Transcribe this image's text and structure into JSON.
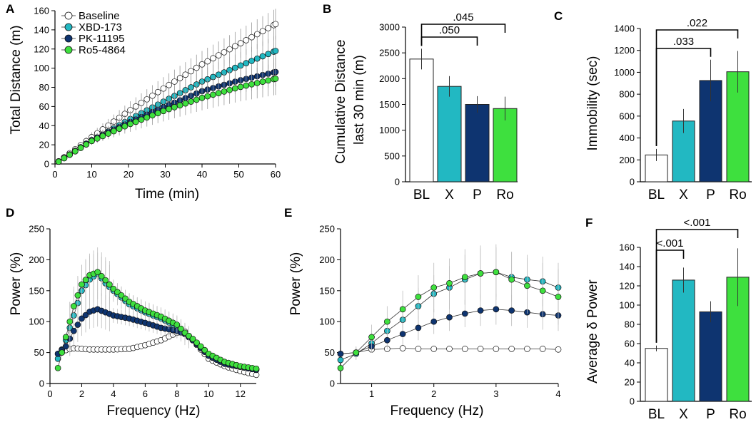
{
  "colors": {
    "Baseline": "#ffffff",
    "XBD-173": "#22b8c2",
    "PK-11195": "#0e3470",
    "Ro5-4864": "#3ee03e",
    "err": "#999999",
    "axis": "#000000"
  },
  "chart_data": [
    {
      "panel": "A",
      "type": "line",
      "xlabel": "Time (min)",
      "ylabel": "Total Distance (m)",
      "xlim": [
        0,
        60
      ],
      "ylim": [
        0,
        160
      ],
      "xticks": [
        "0",
        "10",
        "20",
        "30",
        "40",
        "50",
        "60"
      ],
      "yticks": [
        "0",
        "20",
        "40",
        "60",
        "80",
        "100",
        "120",
        "140",
        "160"
      ],
      "legend": [
        "Baseline",
        "XBD-173",
        "PK-11195",
        "Ro5-4864"
      ],
      "x": [
        0,
        10,
        20,
        30,
        40,
        50,
        60
      ],
      "series": [
        {
          "name": "Baseline",
          "values": [
            0,
            28,
            55,
            80,
            104,
            125,
            146
          ],
          "err": [
            0,
            5,
            9,
            12,
            14,
            15,
            16
          ]
        },
        {
          "name": "XBD-173",
          "values": [
            0,
            24,
            46,
            66,
            86,
            102,
            118
          ],
          "err": [
            0,
            4,
            8,
            10,
            12,
            14,
            16
          ]
        },
        {
          "name": "PK-11195",
          "values": [
            0,
            25,
            43,
            60,
            76,
            87,
            96
          ],
          "err": [
            0,
            4,
            7,
            9,
            11,
            13,
            15
          ]
        },
        {
          "name": "Ro5-4864",
          "values": [
            0,
            24,
            41,
            56,
            69,
            80,
            89
          ],
          "err": [
            0,
            4,
            8,
            11,
            13,
            15,
            17
          ]
        }
      ]
    },
    {
      "panel": "B",
      "type": "bar",
      "ylabel": "Cumulative Distance last 30 min (m)",
      "ylim": [
        0,
        3000
      ],
      "yticks": [
        "0",
        "500",
        "1000",
        "1500",
        "2000",
        "2500",
        "3000"
      ],
      "categories": [
        "BL",
        "X",
        "P",
        "Ro"
      ],
      "values": [
        2380,
        1850,
        1500,
        1420
      ],
      "err": [
        200,
        200,
        160,
        230
      ],
      "comparisons": [
        {
          "from": 0,
          "to": 2,
          "label": ".050"
        },
        {
          "from": 0,
          "to": 3,
          "label": ".045"
        }
      ]
    },
    {
      "panel": "C",
      "type": "bar",
      "ylabel": "Immobility (sec)",
      "ylim": [
        0,
        1400
      ],
      "yticks": [
        "0",
        "200",
        "400",
        "600",
        "800",
        "1000",
        "1200",
        "1400"
      ],
      "categories": [
        "BL",
        "X",
        "P",
        "Ro"
      ],
      "values": [
        245,
        555,
        925,
        1005
      ],
      "err": [
        55,
        110,
        190,
        190
      ],
      "comparisons": [
        {
          "from": 0,
          "to": 2,
          "label": ".033"
        },
        {
          "from": 0,
          "to": 3,
          "label": ".022"
        }
      ]
    },
    {
      "panel": "D",
      "type": "line",
      "xlabel": "Frequency (Hz)",
      "ylabel": "Power (%)",
      "xlim": [
        0,
        13
      ],
      "ylim": [
        0,
        250
      ],
      "xticks": [
        "0",
        "2",
        "4",
        "6",
        "8",
        "10",
        "12"
      ],
      "yticks": [
        "0",
        "50",
        "100",
        "150",
        "200",
        "250"
      ],
      "x": [
        0.5,
        1,
        1.5,
        2,
        2.5,
        3,
        3.5,
        4,
        5,
        6,
        7,
        8,
        8.5,
        9,
        10,
        11,
        12,
        13
      ],
      "series": [
        {
          "name": "Baseline",
          "values": [
            48,
            54,
            57,
            56,
            55,
            55,
            55,
            55,
            56,
            62,
            70,
            82,
            84,
            70,
            40,
            28,
            20,
            14
          ]
        },
        {
          "name": "XBD-173",
          "values": [
            40,
            70,
            110,
            150,
            168,
            178,
            162,
            150,
            128,
            115,
            105,
            92,
            80,
            70,
            45,
            32,
            27,
            23
          ]
        },
        {
          "name": "PK-11195",
          "values": [
            48,
            60,
            85,
            105,
            116,
            120,
            115,
            110,
            105,
            98,
            90,
            85,
            80,
            70,
            45,
            32,
            27,
            22
          ]
        },
        {
          "name": "Ro5-4864",
          "values": [
            25,
            75,
            125,
            160,
            175,
            180,
            167,
            153,
            132,
            118,
            108,
            95,
            82,
            72,
            48,
            35,
            28,
            24
          ]
        }
      ]
    },
    {
      "panel": "E",
      "type": "line",
      "xlabel": "Frequency (Hz)",
      "ylabel": "Power (%)",
      "xlim": [
        0.5,
        4
      ],
      "ylim": [
        0,
        250
      ],
      "xticks": [
        "1",
        "2",
        "3",
        "4"
      ],
      "yticks": [
        "0",
        "50",
        "100",
        "150",
        "200",
        "250"
      ],
      "x": [
        0.5,
        0.75,
        1,
        1.25,
        1.5,
        1.75,
        2,
        2.25,
        2.5,
        2.75,
        3,
        3.25,
        3.5,
        3.75,
        4
      ],
      "series": [
        {
          "name": "Baseline",
          "values": [
            48,
            50,
            55,
            56,
            57,
            56,
            56,
            56,
            56,
            56,
            56,
            56,
            56,
            56,
            55
          ],
          "err": [
            0,
            0,
            0,
            0,
            0,
            0,
            0,
            0,
            0,
            0,
            0,
            0,
            0,
            0,
            0
          ]
        },
        {
          "name": "XBD-173",
          "values": [
            38,
            48,
            65,
            85,
            103,
            125,
            145,
            155,
            168,
            178,
            180,
            172,
            168,
            165,
            155
          ],
          "err": [
            0,
            10,
            15,
            20,
            25,
            30,
            30,
            35,
            40,
            40,
            40,
            40,
            40,
            40,
            40
          ]
        },
        {
          "name": "PK-11195",
          "values": [
            48,
            50,
            60,
            70,
            80,
            90,
            100,
            107,
            113,
            118,
            120,
            118,
            115,
            112,
            110
          ],
          "err": [
            0,
            8,
            10,
            15,
            18,
            20,
            20,
            22,
            22,
            25,
            25,
            25,
            25,
            25,
            25
          ]
        },
        {
          "name": "Ro5-4864",
          "values": [
            25,
            50,
            75,
            100,
            120,
            140,
            155,
            162,
            172,
            178,
            180,
            168,
            158,
            150,
            140
          ],
          "err": [
            0,
            10,
            20,
            25,
            30,
            35,
            40,
            40,
            45,
            45,
            45,
            45,
            45,
            45,
            45
          ]
        }
      ]
    },
    {
      "panel": "F",
      "type": "bar",
      "ylabel": "Average δ Power",
      "ylim": [
        0,
        160
      ],
      "yticks": [
        "0",
        "20",
        "40",
        "60",
        "80",
        "100",
        "120",
        "140",
        "160"
      ],
      "categories": [
        "BL",
        "X",
        "P",
        "Ro"
      ],
      "values": [
        55,
        126,
        93,
        129
      ],
      "err": [
        3,
        13,
        11,
        30
      ],
      "comparisons": [
        {
          "from": 0,
          "to": 1,
          "label": "<.001"
        },
        {
          "from": 0,
          "to": 3,
          "label": "<.001"
        }
      ]
    }
  ]
}
